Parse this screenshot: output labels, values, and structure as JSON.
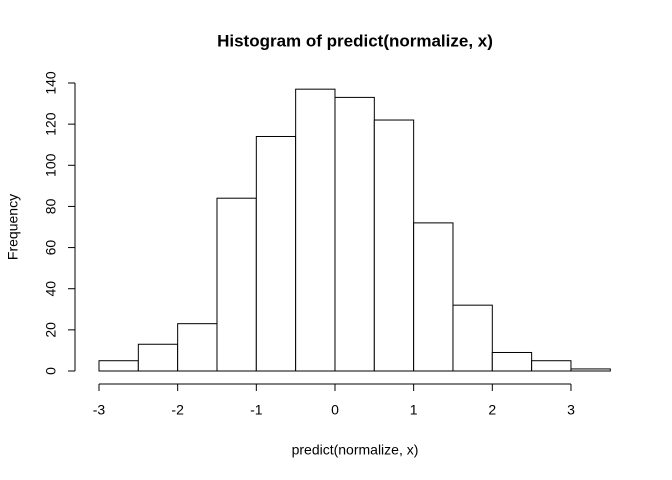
{
  "chart_data": {
    "type": "histogram",
    "title": "Histogram of predict(normalize, x)",
    "x_label": "predict(normalize, x)",
    "y_label": "Frequency",
    "bins": [
      -3,
      -2.5,
      -2,
      -1.5,
      -1,
      -0.5,
      0,
      0.5,
      1,
      1.5,
      2,
      2.5,
      3,
      3.5
    ],
    "values": [
      5,
      13,
      23,
      84,
      114,
      137,
      133,
      122,
      72,
      32,
      9,
      5,
      1
    ],
    "color": "#ffffff",
    "edgecolor": "#000000",
    "xlim": [
      -3,
      3.5
    ],
    "xticks": [
      -3,
      -2,
      -1,
      0,
      1,
      2,
      3
    ],
    "ylim": [
      0,
      140
    ],
    "yticks": [
      0,
      20,
      40,
      60,
      80,
      100,
      120,
      140
    ]
  }
}
